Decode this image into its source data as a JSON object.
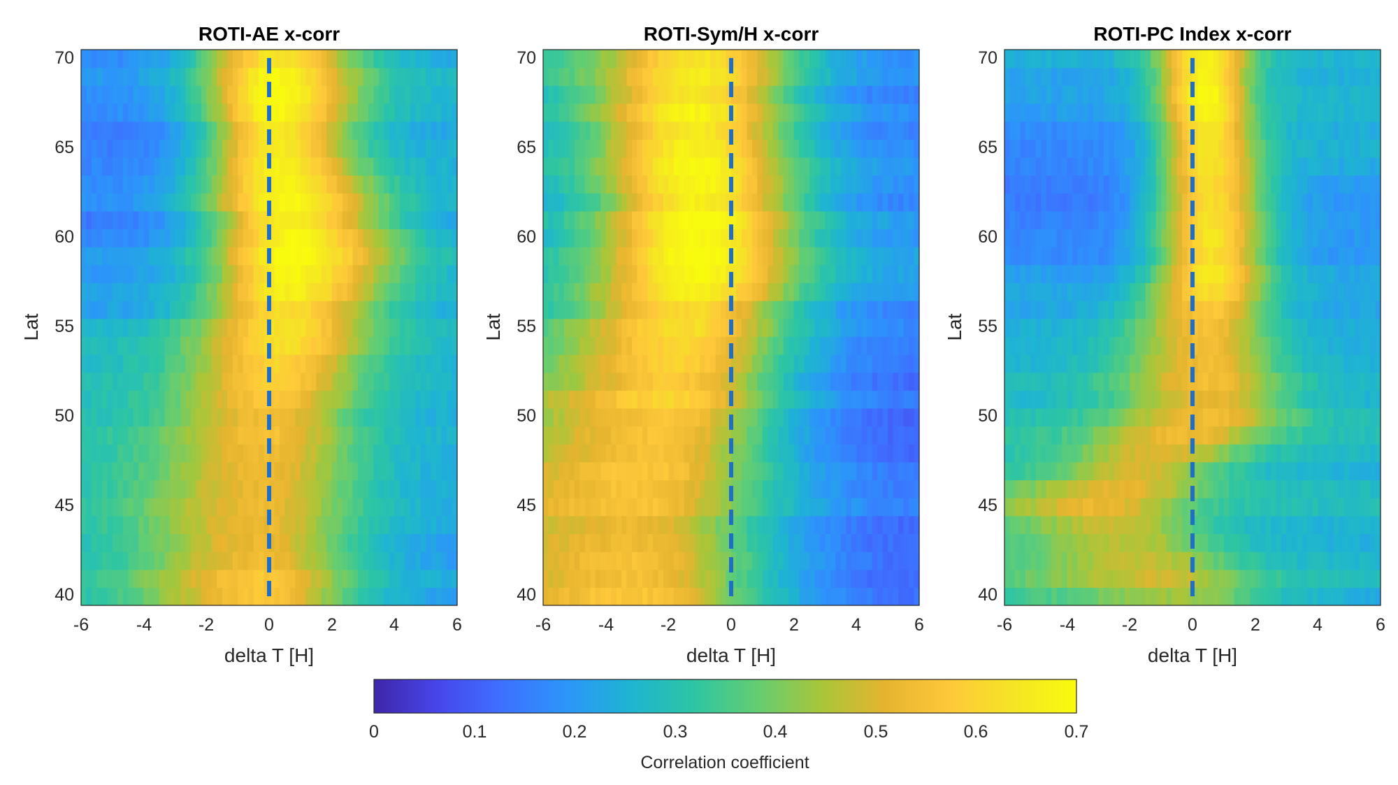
{
  "figure": {
    "colorbar": {
      "label": "Correlation coefficient",
      "range": [
        0,
        0.7
      ],
      "ticks": [
        0,
        0.1,
        0.2,
        0.3,
        0.4,
        0.5,
        0.6,
        0.7
      ],
      "tick_labels": [
        "0",
        "0.1",
        "0.2",
        "0.3",
        "0.4",
        "0.5",
        "0.6",
        "0.7"
      ],
      "colormap": [
        "#3e26a8",
        "#4746eb",
        "#3e70ff",
        "#2c95fa",
        "#1eb4d2",
        "#2dc5a4",
        "#64cd72",
        "#a8c63a",
        "#e6b42f",
        "#fec83a",
        "#f5e425",
        "#f9fb0e"
      ]
    },
    "dashed_line_color": "#1f6fc8"
  },
  "chart_data": [
    {
      "type": "heatmap",
      "title": "ROTI-AE x-corr",
      "xlabel": "delta T [H]",
      "ylabel": "Lat",
      "xlim": [
        -6,
        6
      ],
      "ylim": [
        39.5,
        70.5
      ],
      "x_ticks": [
        -6,
        -4,
        -2,
        0,
        2,
        4,
        6
      ],
      "x_tick_labels": [
        "-6",
        "-4",
        "-2",
        "0",
        "2",
        "4",
        "6"
      ],
      "y_ticks": [
        40,
        45,
        50,
        55,
        60,
        65,
        70
      ],
      "y_tick_labels": [
        "40",
        "45",
        "50",
        "55",
        "60",
        "65",
        "70"
      ],
      "reference_line_x": 0,
      "lat": [
        40,
        41,
        42,
        43,
        44,
        45,
        46,
        47,
        48,
        49,
        50,
        51,
        52,
        53,
        54,
        55,
        56,
        57,
        58,
        59,
        60,
        61,
        62,
        63,
        64,
        65,
        66,
        67,
        68,
        69,
        70
      ],
      "profile_params": {
        "lat_knots": [
          40,
          45,
          50,
          55,
          58,
          60,
          62,
          65,
          68,
          70
        ],
        "peak_dt": [
          -0.3,
          -0.3,
          0.0,
          0.5,
          0.7,
          0.7,
          0.5,
          0.2,
          0.2,
          0.2
        ],
        "peak_value": [
          0.57,
          0.53,
          0.55,
          0.62,
          0.68,
          0.69,
          0.67,
          0.64,
          0.69,
          0.66
        ],
        "left_width": [
          3.5,
          3.8,
          3.0,
          2.8,
          2.5,
          2.6,
          2.6,
          2.2,
          2.3,
          2.4
        ],
        "right_width": [
          3.0,
          3.2,
          2.8,
          2.8,
          3.2,
          3.3,
          3.0,
          2.4,
          2.6,
          2.6
        ],
        "left_floor": [
          0.3,
          0.3,
          0.3,
          0.25,
          0.2,
          0.17,
          0.16,
          0.14,
          0.17,
          0.2
        ],
        "right_floor": [
          0.22,
          0.24,
          0.25,
          0.25,
          0.23,
          0.22,
          0.22,
          0.23,
          0.24,
          0.26
        ]
      }
    },
    {
      "type": "heatmap",
      "title": "ROTI-Sym/H x-corr",
      "xlabel": "delta T [H]",
      "ylabel": "Lat",
      "xlim": [
        -6,
        6
      ],
      "ylim": [
        39.5,
        70.5
      ],
      "x_ticks": [
        -6,
        -4,
        -2,
        0,
        2,
        4,
        6
      ],
      "x_tick_labels": [
        "-6",
        "-4",
        "-2",
        "0",
        "2",
        "4",
        "6"
      ],
      "y_ticks": [
        40,
        45,
        50,
        55,
        60,
        65,
        70
      ],
      "y_tick_labels": [
        "40",
        "45",
        "50",
        "55",
        "60",
        "65",
        "70"
      ],
      "reference_line_x": 0,
      "lat": [
        40,
        41,
        42,
        43,
        44,
        45,
        46,
        47,
        48,
        49,
        50,
        51,
        52,
        53,
        54,
        55,
        56,
        57,
        58,
        59,
        60,
        61,
        62,
        63,
        64,
        65,
        66,
        67,
        68,
        69,
        70
      ],
      "profile_params": {
        "lat_knots": [
          40,
          45,
          50,
          55,
          58,
          60,
          62,
          65,
          68,
          70
        ],
        "peak_dt": [
          -3.0,
          -3.0,
          -2.0,
          -1.5,
          -1.0,
          -1.0,
          -1.0,
          -1.2,
          -1.2,
          -1.0
        ],
        "peak_value": [
          0.55,
          0.54,
          0.58,
          0.62,
          0.68,
          0.7,
          0.69,
          0.67,
          0.66,
          0.63
        ],
        "left_width": [
          4.5,
          4.5,
          4.0,
          3.5,
          3.2,
          3.2,
          3.0,
          3.0,
          3.0,
          3.0
        ],
        "right_width": [
          4.5,
          4.5,
          3.8,
          3.5,
          3.2,
          3.2,
          3.2,
          3.2,
          3.2,
          3.2
        ],
        "left_floor": [
          0.4,
          0.4,
          0.38,
          0.3,
          0.25,
          0.24,
          0.25,
          0.25,
          0.28,
          0.3
        ],
        "right_floor": [
          0.1,
          0.13,
          0.12,
          0.16,
          0.2,
          0.19,
          0.18,
          0.17,
          0.16,
          0.17
        ]
      }
    },
    {
      "type": "heatmap",
      "title": "ROTI-PC Index x-corr",
      "xlabel": "delta T [H]",
      "ylabel": "Lat",
      "xlim": [
        -6,
        6
      ],
      "ylim": [
        39.5,
        70.5
      ],
      "x_ticks": [
        -6,
        -4,
        -2,
        0,
        2,
        4,
        6
      ],
      "x_tick_labels": [
        "-6",
        "-4",
        "-2",
        "0",
        "2",
        "4",
        "6"
      ],
      "y_ticks": [
        40,
        45,
        50,
        55,
        60,
        65,
        70
      ],
      "y_tick_labels": [
        "40",
        "45",
        "50",
        "55",
        "60",
        "65",
        "70"
      ],
      "reference_line_x": 0,
      "lat": [
        40,
        41,
        42,
        43,
        44,
        45,
        46,
        47,
        48,
        49,
        50,
        51,
        52,
        53,
        54,
        55,
        56,
        57,
        58,
        59,
        60,
        61,
        62,
        63,
        64,
        65,
        66,
        67,
        68,
        69,
        70
      ],
      "profile_params": {
        "lat_knots": [
          40,
          45,
          50,
          55,
          58,
          60,
          62,
          65,
          68,
          70
        ],
        "peak_dt": [
          -0.5,
          -3.0,
          0.5,
          0.5,
          0.6,
          0.6,
          0.6,
          0.5,
          0.4,
          0.4
        ],
        "peak_value": [
          0.46,
          0.5,
          0.52,
          0.55,
          0.64,
          0.65,
          0.64,
          0.62,
          0.68,
          0.66
        ],
        "left_width": [
          4.0,
          3.0,
          3.0,
          2.5,
          1.8,
          1.8,
          1.8,
          1.6,
          1.5,
          1.6
        ],
        "right_width": [
          3.0,
          3.0,
          2.5,
          2.0,
          1.8,
          1.8,
          1.8,
          1.6,
          1.4,
          1.5
        ],
        "left_floor": [
          0.33,
          0.33,
          0.28,
          0.25,
          0.2,
          0.18,
          0.17,
          0.15,
          0.2,
          0.24
        ],
        "right_floor": [
          0.26,
          0.27,
          0.27,
          0.24,
          0.22,
          0.21,
          0.22,
          0.23,
          0.24,
          0.25
        ]
      }
    }
  ]
}
